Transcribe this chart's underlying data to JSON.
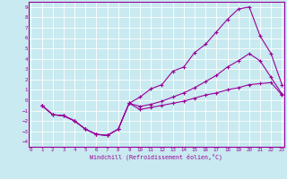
{
  "bg_color": "#c8eaf0",
  "line_color": "#990099",
  "grid_color": "#ffffff",
  "xlabel": "Windchill (Refroidissement éolien,°C)",
  "xlim": [
    -0.2,
    23.2
  ],
  "ylim": [
    -4.5,
    9.5
  ],
  "xticks": [
    0,
    1,
    2,
    3,
    4,
    5,
    6,
    7,
    8,
    9,
    10,
    11,
    12,
    13,
    14,
    15,
    16,
    17,
    18,
    19,
    20,
    21,
    22,
    23
  ],
  "yticks": [
    -4,
    -3,
    -2,
    -1,
    0,
    1,
    2,
    3,
    4,
    5,
    6,
    7,
    8,
    9
  ],
  "curve1_x": [
    1,
    2,
    3,
    4,
    5,
    6,
    7,
    8,
    9,
    10,
    11,
    12,
    13,
    14,
    15,
    16,
    17,
    18,
    19,
    20,
    21,
    22,
    23
  ],
  "curve1_y": [
    -0.5,
    -1.4,
    -1.5,
    -2.0,
    -2.8,
    -3.3,
    -3.4,
    -2.8,
    -0.3,
    0.3,
    1.1,
    1.5,
    2.8,
    3.2,
    4.6,
    5.4,
    6.6,
    7.8,
    8.8,
    9.0,
    6.2,
    4.5,
    1.5
  ],
  "curve2_x": [
    1,
    2,
    3,
    4,
    5,
    6,
    7,
    8,
    9,
    10,
    11,
    12,
    13,
    14,
    15,
    16,
    17,
    18,
    19,
    20,
    21,
    22,
    23
  ],
  "curve2_y": [
    -0.5,
    -1.4,
    -1.5,
    -2.0,
    -2.8,
    -3.3,
    -3.4,
    -2.8,
    -0.3,
    -0.6,
    -0.4,
    -0.1,
    0.3,
    0.7,
    1.2,
    1.8,
    2.4,
    3.2,
    3.8,
    4.5,
    3.8,
    2.2,
    0.6
  ],
  "curve3_x": [
    1,
    2,
    3,
    4,
    5,
    6,
    7,
    8,
    9,
    10,
    11,
    12,
    13,
    14,
    15,
    16,
    17,
    18,
    19,
    20,
    21,
    22,
    23
  ],
  "curve3_y": [
    -0.5,
    -1.4,
    -1.5,
    -2.0,
    -2.8,
    -3.3,
    -3.4,
    -2.8,
    -0.3,
    -0.9,
    -0.7,
    -0.5,
    -0.3,
    -0.1,
    0.2,
    0.5,
    0.7,
    1.0,
    1.2,
    1.5,
    1.6,
    1.7,
    0.5
  ]
}
